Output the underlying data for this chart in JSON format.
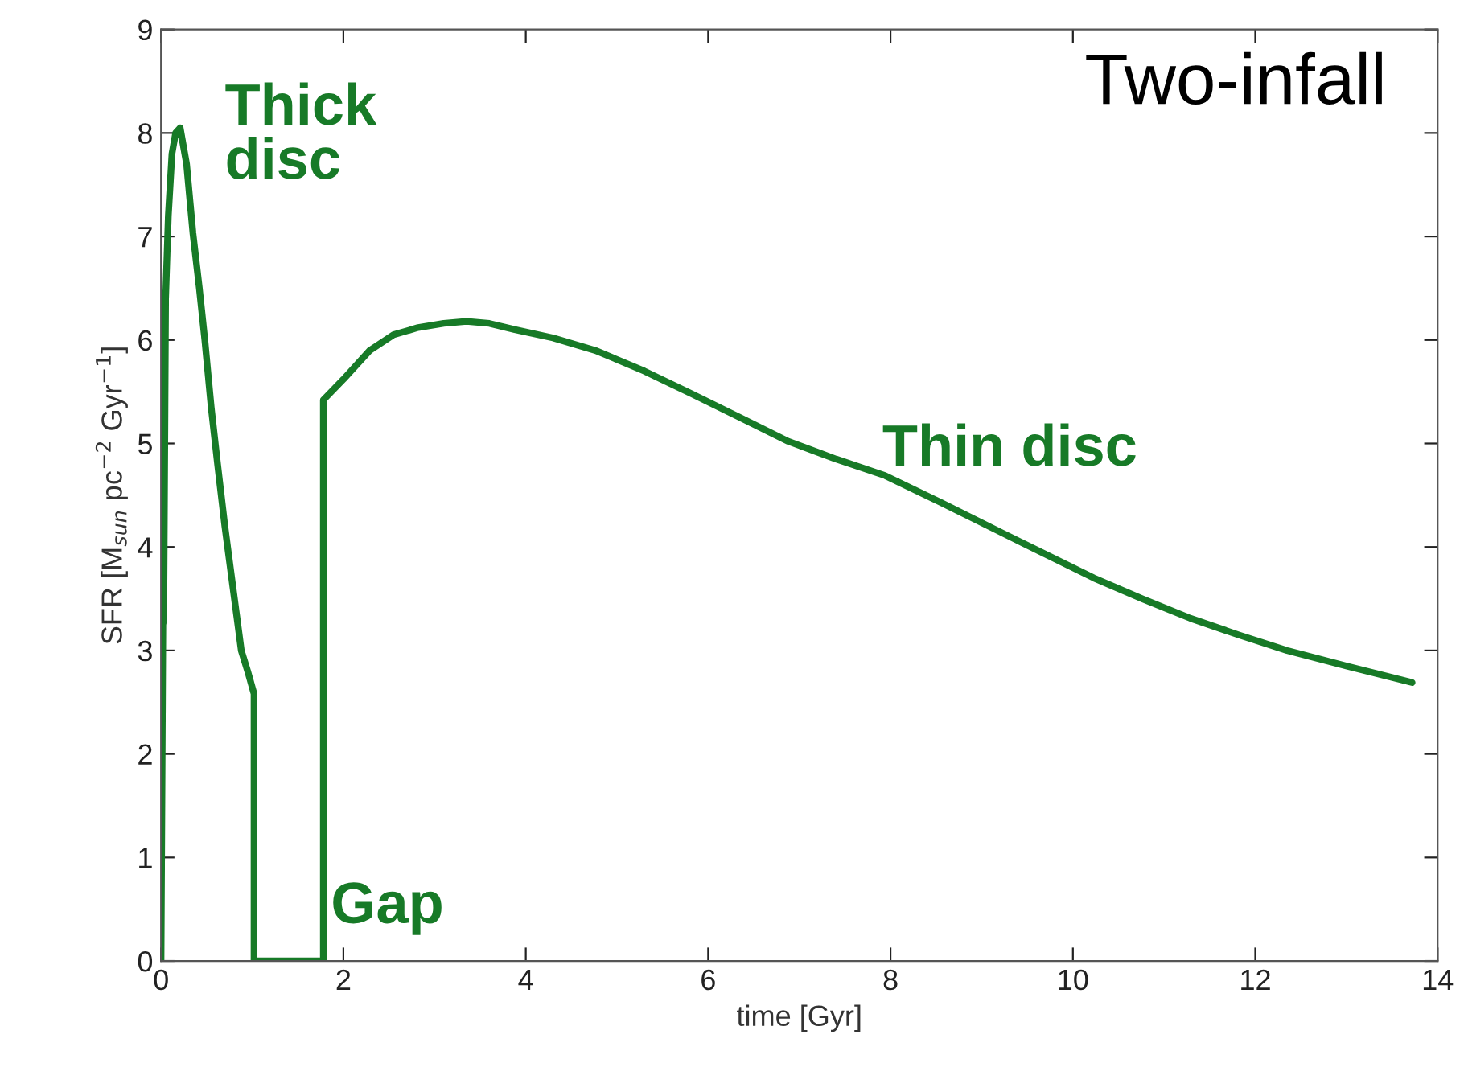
{
  "chart_data": {
    "type": "line",
    "xlabel": "time [Gyr]",
    "ylabel": "SFR [M$_{sun}$ pc$^{−2}$ Gyr$^{−1}$]",
    "series": [
      {
        "color": "#177a27",
        "x": [
          0,
          0.02,
          0.03,
          0.05,
          0.08,
          0.12,
          0.16,
          0.21,
          0.28,
          0.35,
          0.42,
          0.48,
          0.55,
          0.62,
          0.7,
          0.79,
          0.88,
          0.95,
          1.02,
          1.02,
          1.78,
          1.78,
          2.0,
          2.29,
          2.55,
          2.82,
          3.1,
          3.35,
          3.6,
          3.88,
          4.3,
          4.76,
          5.3,
          5.82,
          6.35,
          6.88,
          7.4,
          7.94,
          8.55,
          9.17,
          9.7,
          10.23,
          10.76,
          11.29,
          11.82,
          12.35,
          13.0,
          13.72
        ],
        "values": [
          0,
          3.25,
          3.3,
          6.4,
          7.2,
          7.8,
          8.0,
          8.05,
          7.7,
          7.03,
          6.5,
          6.0,
          5.35,
          4.8,
          4.2,
          3.6,
          3.0,
          2.8,
          2.58,
          0,
          0,
          5.42,
          5.62,
          5.9,
          6.05,
          6.12,
          6.16,
          6.18,
          6.16,
          6.1,
          6.02,
          5.9,
          5.7,
          5.48,
          5.25,
          5.02,
          4.85,
          4.69,
          4.43,
          4.16,
          3.93,
          3.7,
          3.5,
          3.31,
          3.15,
          3.0,
          2.85,
          2.69
        ]
      }
    ],
    "xlim": [
      0,
      14
    ],
    "ylim": [
      0,
      9
    ],
    "xticks": [
      0,
      2,
      4,
      6,
      8,
      10,
      12,
      14
    ],
    "yticks": [
      0,
      1,
      2,
      3,
      4,
      5,
      6,
      7,
      8,
      9
    ],
    "grid": false,
    "legend": false,
    "marker": "none",
    "line_style": "solid",
    "annotations": [
      "Thick\ndisc",
      "Thin disc",
      "Gap",
      "Two-infall"
    ]
  }
}
